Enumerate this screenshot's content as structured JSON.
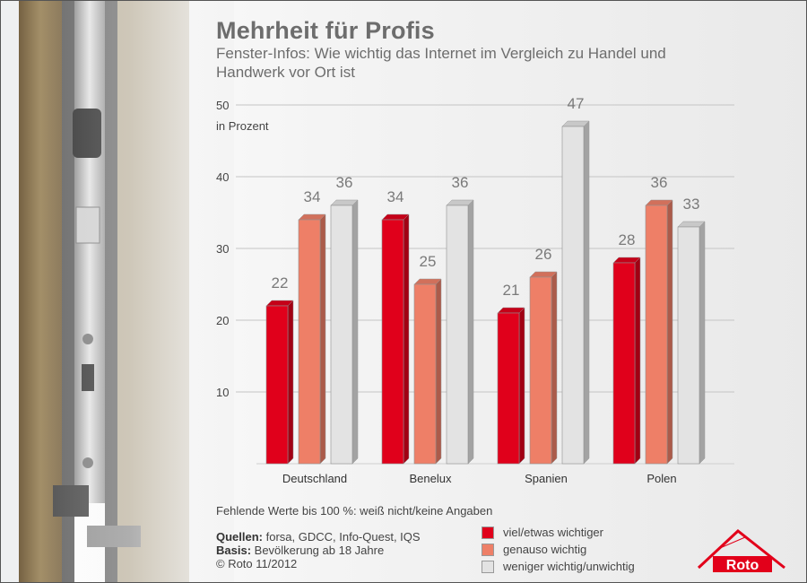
{
  "title": "Mehrheit für Profis",
  "subtitle": "Fenster-Infos: Wie wichtig das Internet im Vergleich zu Handel und Handwerk vor Ort ist",
  "note": "Fehlende Werte bis 100 %: weiß nicht/keine Angaben",
  "sources": {
    "quellen_label": "Quellen:",
    "quellen_text": " forsa, GDCC, Info-Quest, IQS",
    "basis_label": "Basis:",
    "basis_text": " Bevölkerung ab 18 Jahre",
    "copyright": "© Roto 11/2012"
  },
  "logo_text": "Roto",
  "colors": {
    "red": "#e0001b",
    "salmon": "#ee7f67",
    "grey": "#e3e3e3",
    "brand": "#e2001a"
  },
  "chart_data": {
    "type": "bar",
    "unit_label": "in Prozent",
    "categories": [
      "Deutschland",
      "Benelux",
      "Spanien",
      "Polen"
    ],
    "yticks": [
      10,
      20,
      30,
      40,
      50
    ],
    "ylim": [
      0,
      50
    ],
    "grid": true,
    "legend_position": "bottom",
    "series": [
      {
        "name": "viel/etwas wichtiger",
        "color": "#e0001b",
        "values": [
          22,
          34,
          21,
          28
        ]
      },
      {
        "name": "genauso wichtig",
        "color": "#ee7f67",
        "values": [
          34,
          25,
          26,
          36
        ]
      },
      {
        "name": "weniger wichtig/unwichtig",
        "color": "#e3e3e3",
        "values": [
          36,
          36,
          47,
          33
        ]
      }
    ]
  }
}
